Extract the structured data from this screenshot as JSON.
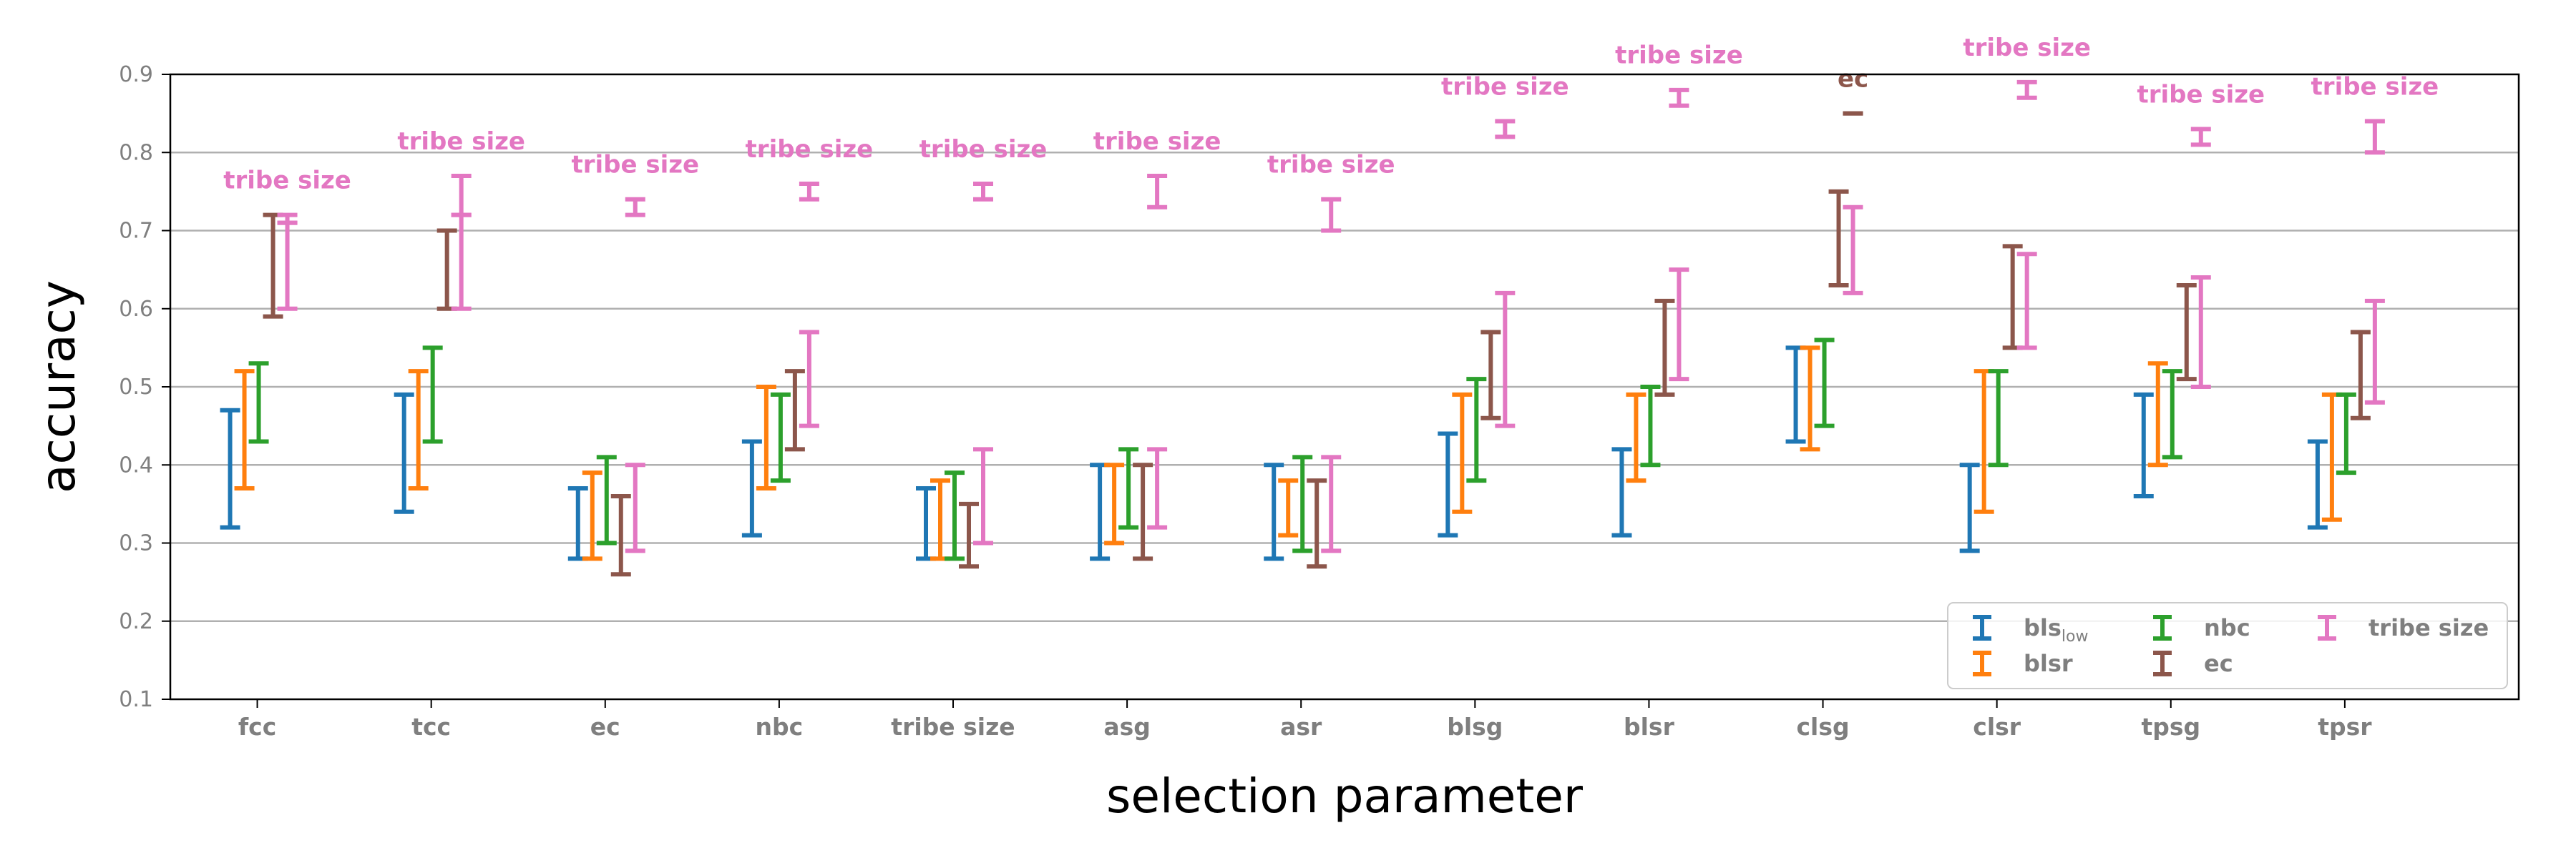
{
  "chart_data": {
    "type": "errorbar",
    "xlabel": "selection parameter",
    "ylabel": "accuracy",
    "ylim": [
      0.1,
      0.9
    ],
    "yticks": [
      "0.1",
      "0.2",
      "0.3",
      "0.4",
      "0.5",
      "0.6",
      "0.7",
      "0.8",
      "0.9"
    ],
    "categories": [
      "fcc",
      "tcc",
      "ec",
      "nbc",
      "tribe size",
      "asg",
      "asr",
      "blsg",
      "blsr",
      "clsg",
      "clsr",
      "tpsg",
      "tpsr"
    ],
    "grid": "horizontal",
    "legend_placement": "lower-right",
    "series": [
      {
        "key": "bls_low",
        "name": "bls",
        "name_sub": "low",
        "color": "#1f77b4",
        "ranges": [
          [
            0.32,
            0.47
          ],
          [
            0.34,
            0.49
          ],
          [
            0.28,
            0.37
          ],
          [
            0.31,
            0.43
          ],
          [
            0.28,
            0.37
          ],
          [
            0.28,
            0.4
          ],
          [
            0.28,
            0.4
          ],
          [
            0.31,
            0.44
          ],
          [
            0.31,
            0.42
          ],
          [
            0.43,
            0.55
          ],
          [
            0.29,
            0.4
          ],
          [
            0.36,
            0.49
          ],
          [
            0.32,
            0.43
          ]
        ]
      },
      {
        "key": "blsr",
        "name": "blsr",
        "color": "#ff7f0e",
        "ranges": [
          [
            0.37,
            0.52
          ],
          [
            0.37,
            0.52
          ],
          [
            0.28,
            0.39
          ],
          [
            0.37,
            0.5
          ],
          [
            0.28,
            0.38
          ],
          [
            0.3,
            0.4
          ],
          [
            0.31,
            0.38
          ],
          [
            0.34,
            0.49
          ],
          [
            0.38,
            0.49
          ],
          [
            0.42,
            0.55
          ],
          [
            0.34,
            0.52
          ],
          [
            0.4,
            0.53
          ],
          [
            0.33,
            0.49
          ]
        ]
      },
      {
        "key": "nbc",
        "name": "nbc",
        "color": "#2ca02c",
        "ranges": [
          [
            0.43,
            0.53
          ],
          [
            0.43,
            0.55
          ],
          [
            0.3,
            0.41
          ],
          [
            0.38,
            0.49
          ],
          [
            0.28,
            0.39
          ],
          [
            0.32,
            0.42
          ],
          [
            0.29,
            0.41
          ],
          [
            0.38,
            0.51
          ],
          [
            0.4,
            0.5
          ],
          [
            0.45,
            0.56
          ],
          [
            0.4,
            0.52
          ],
          [
            0.41,
            0.52
          ],
          [
            0.39,
            0.49
          ]
        ]
      },
      {
        "key": "ec",
        "name": "ec",
        "color": "#8c564b",
        "ranges": [
          [
            0.59,
            0.72
          ],
          [
            0.6,
            0.7
          ],
          [
            0.26,
            0.36
          ],
          [
            0.42,
            0.52
          ],
          [
            0.27,
            0.35
          ],
          [
            0.28,
            0.4
          ],
          [
            0.27,
            0.38
          ],
          [
            0.46,
            0.57
          ],
          [
            0.49,
            0.61
          ],
          [
            0.63,
            0.75
          ],
          [
            0.55,
            0.68
          ],
          [
            0.51,
            0.63
          ],
          [
            0.46,
            0.57
          ]
        ]
      },
      {
        "key": "tribe_size",
        "name": "tribe size",
        "color": "#e377c2",
        "ranges": [
          [
            0.6,
            0.71
          ],
          [
            0.6,
            0.72
          ],
          [
            0.29,
            0.4
          ],
          [
            0.45,
            0.57
          ],
          [
            0.3,
            0.42
          ],
          [
            0.32,
            0.42
          ],
          [
            0.29,
            0.41
          ],
          [
            0.45,
            0.62
          ],
          [
            0.51,
            0.65
          ],
          [
            0.62,
            0.73
          ],
          [
            0.55,
            0.67
          ],
          [
            0.5,
            0.64
          ],
          [
            0.48,
            0.61
          ]
        ]
      }
    ],
    "best": [
      {
        "label": "tribe size",
        "series": "tribe_size",
        "range": [
          0.71,
          0.72
        ],
        "label_y": 0.765
      },
      {
        "label": "tribe size",
        "series": "tribe_size",
        "range": [
          0.72,
          0.77
        ],
        "label_y": 0.815
      },
      {
        "label": "tribe size",
        "series": "tribe_size",
        "range": [
          0.72,
          0.74
        ],
        "label_y": 0.785
      },
      {
        "label": "tribe size",
        "series": "tribe_size",
        "range": [
          0.74,
          0.76
        ],
        "label_y": 0.805
      },
      {
        "label": "tribe size",
        "series": "tribe_size",
        "range": [
          0.74,
          0.76
        ],
        "label_y": 0.805
      },
      {
        "label": "tribe size",
        "series": "tribe_size",
        "range": [
          0.73,
          0.77
        ],
        "label_y": 0.815
      },
      {
        "label": "tribe size",
        "series": "tribe_size",
        "range": [
          0.7,
          0.74
        ],
        "label_y": 0.785
      },
      {
        "label": "tribe size",
        "series": "tribe_size",
        "range": [
          0.82,
          0.84
        ],
        "label_y": 0.885
      },
      {
        "label": "tribe size",
        "series": "tribe_size",
        "range": [
          0.86,
          0.88
        ],
        "label_y": 0.925
      },
      {
        "label": "ec",
        "series": "ec",
        "range": [
          0.85,
          0.85
        ],
        "label_y": 0.895
      },
      {
        "label": "tribe size",
        "series": "tribe_size",
        "range": [
          0.87,
          0.89
        ],
        "label_y": 0.935
      },
      {
        "label": "tribe size",
        "series": "tribe_size",
        "range": [
          0.81,
          0.83
        ],
        "label_y": 0.875
      },
      {
        "label": "tribe size",
        "series": "tribe_size",
        "range": [
          0.8,
          0.84
        ],
        "label_y": 0.885
      }
    ]
  }
}
